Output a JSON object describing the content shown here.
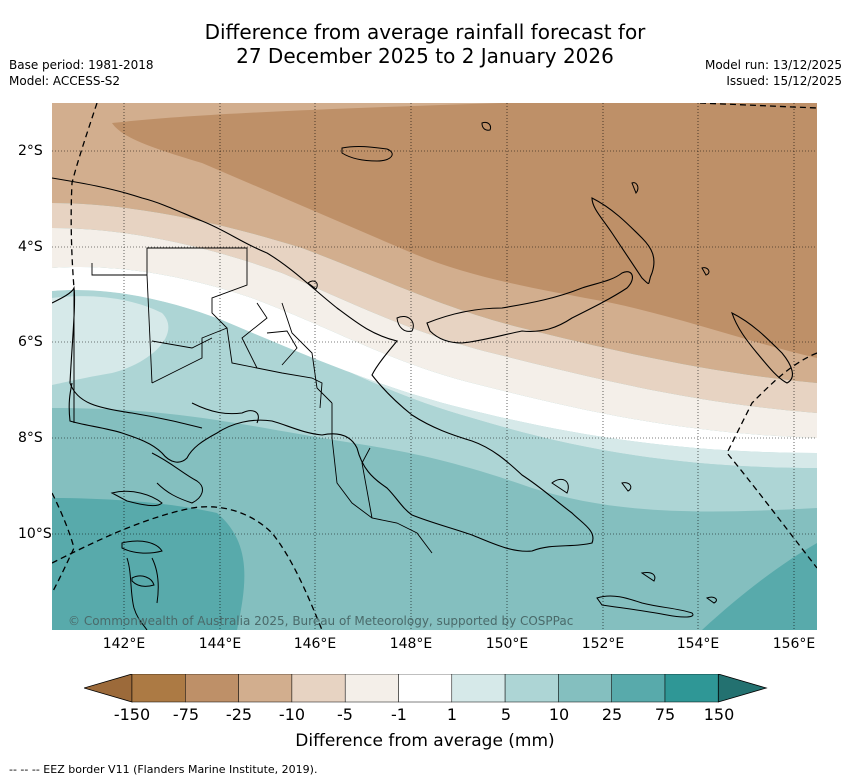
{
  "title": {
    "line1": "Difference from average rainfall forecast for",
    "line2": "27 December 2025 to 2 January 2026"
  },
  "meta": {
    "base_period": "Base period: 1981-2018",
    "model": "Model: ACCESS-S2",
    "model_run": "Model run: 13/12/2025",
    "issued": "Issued: 15/12/2025"
  },
  "map": {
    "x_ticks": [
      "142°E",
      "144°E",
      "146°E",
      "148°E",
      "150°E",
      "152°E",
      "154°E",
      "156°E"
    ],
    "y_ticks": [
      "2°S",
      "4°S",
      "6°S",
      "8°S",
      "10°S"
    ],
    "copyright": "© Commonwealth of Australia 2025, Bureau of Meteorology, supported by COSPPac"
  },
  "colorbar": {
    "labels": [
      "-150",
      "-75",
      "-25",
      "-10",
      "-5",
      "-1",
      "1",
      "5",
      "10",
      "25",
      "75",
      "150"
    ],
    "colors": [
      "#9c6a3a",
      "#ac7a44",
      "#be9068",
      "#d2ae8e",
      "#e7d3c2",
      "#f4efe9",
      "#ffffff",
      "#d6e9e9",
      "#add5d5",
      "#84bfbf",
      "#58aaab",
      "#2f9796",
      "#237170"
    ],
    "title": "Difference from average (mm)"
  },
  "footer": "--  --  -- EEZ border V11 (Flanders Marine Institute, 2019)."
}
